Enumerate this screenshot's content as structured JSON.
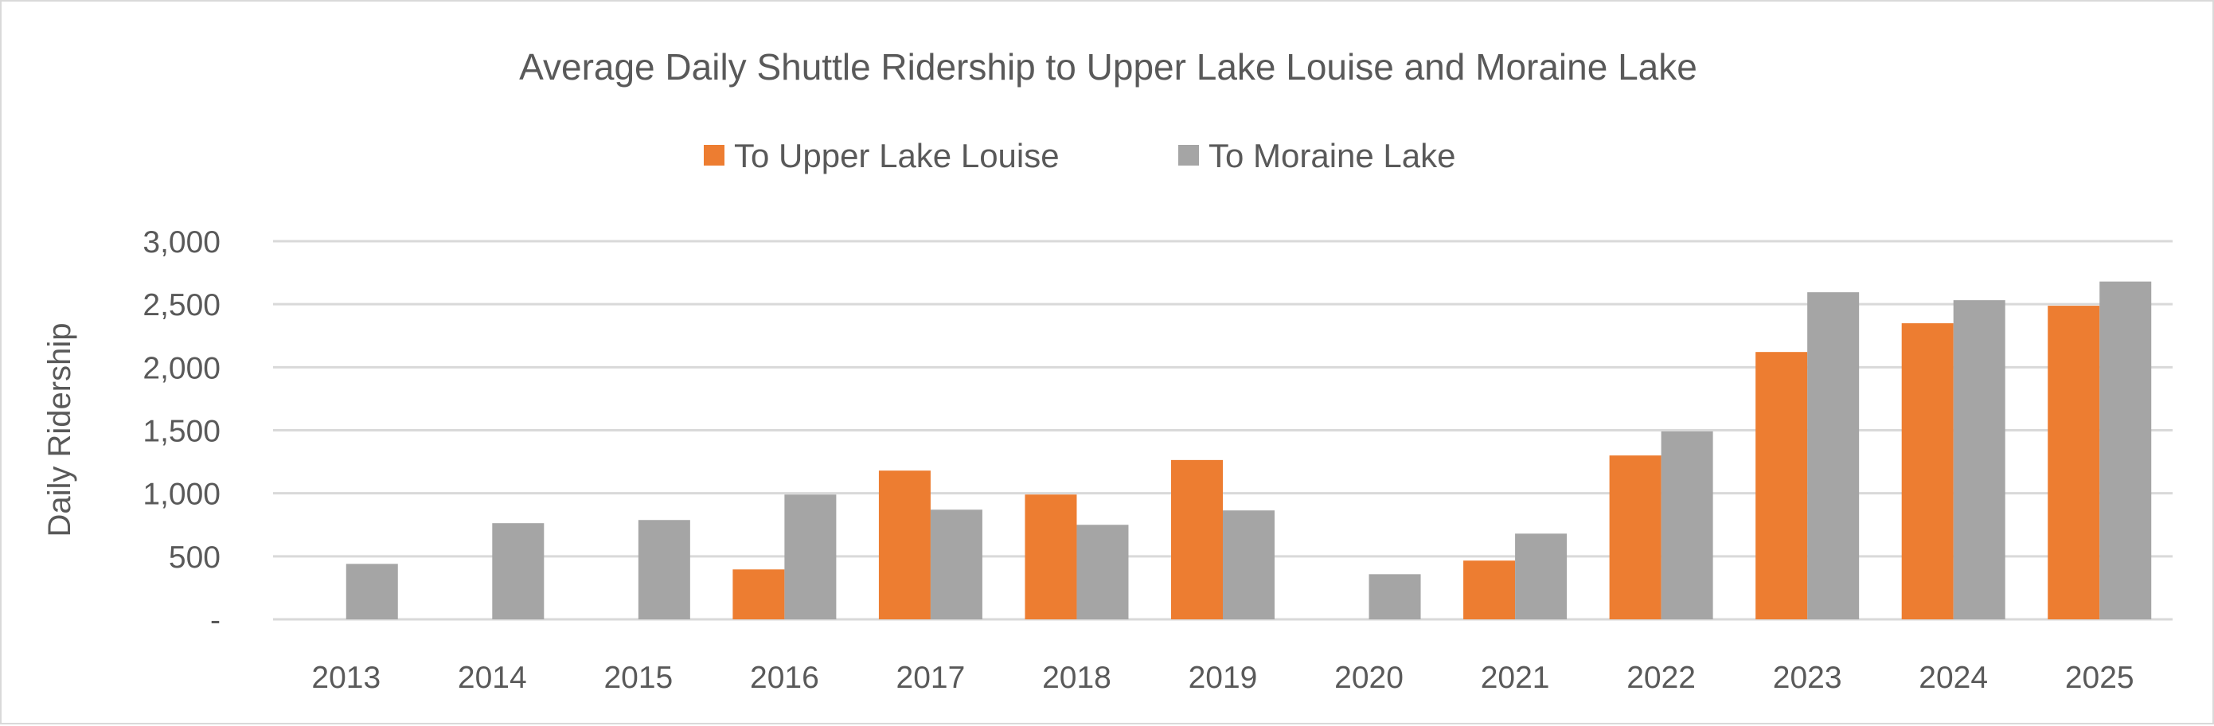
{
  "chart_data": {
    "type": "bar",
    "title": "Average Daily Shuttle Ridership to Upper Lake Louise and Moraine Lake",
    "xlabel": "",
    "ylabel": "Daily Ridership",
    "ylim": [
      0,
      3000
    ],
    "yticks": [
      0,
      500,
      1000,
      1500,
      2000,
      2500,
      3000
    ],
    "ytick_labels": [
      "-",
      "500",
      "1,000",
      "1,500",
      "2,000",
      "2,500",
      "3,000"
    ],
    "grid": true,
    "legend_position": "top",
    "categories": [
      "2013",
      "2014",
      "2015",
      "2016",
      "2017",
      "2018",
      "2019",
      "2020",
      "2021",
      "2022",
      "2023",
      "2024",
      "2025"
    ],
    "series": [
      {
        "name": "To Upper Lake Louise",
        "color": "#ed7d31",
        "values": [
          null,
          null,
          null,
          396,
          1180,
          990,
          1264,
          null,
          466,
          1300,
          2121,
          2349,
          2488
        ]
      },
      {
        "name": "To Moraine Lake",
        "color": "#a5a5a5",
        "values": [
          440,
          763,
          788,
          990,
          870,
          750,
          864,
          358,
          680,
          1491,
          2595,
          2532,
          2680
        ]
      }
    ]
  }
}
